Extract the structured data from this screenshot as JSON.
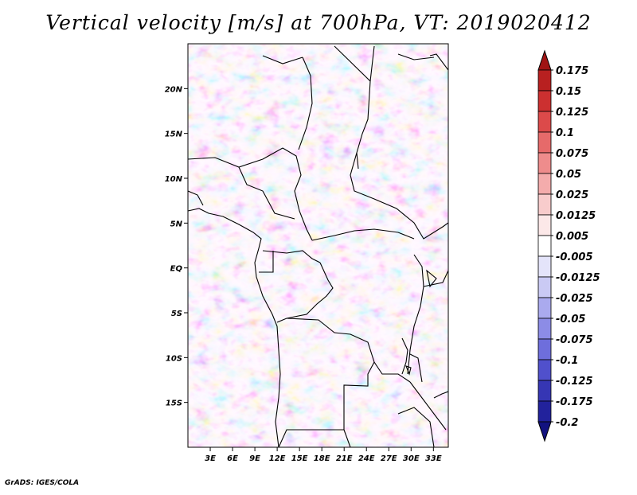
{
  "title": "Vertical velocity [m/s] at 700hPa, VT: 2019020412",
  "credit": "GrADS: IGES/COLA",
  "map": {
    "lon_range": [
      0,
      35
    ],
    "lat_range": [
      -20,
      25
    ],
    "lat_labels": [
      "20N",
      "15N",
      "10N",
      "5N",
      "EQ",
      "5S",
      "10S",
      "15S"
    ],
    "lat_values": [
      20,
      15,
      10,
      5,
      0,
      -5,
      -10,
      -15
    ],
    "lon_labels": [
      "3E",
      "6E",
      "9E",
      "12E",
      "15E",
      "18E",
      "21E",
      "24E",
      "27E",
      "30E",
      "33E"
    ],
    "lon_values": [
      3,
      6,
      9,
      12,
      15,
      18,
      21,
      24,
      27,
      30,
      33
    ]
  },
  "colorbar": {
    "labels": [
      "0.175",
      "0.15",
      "0.125",
      "0.1",
      "0.075",
      "0.05",
      "0.025",
      "0.0125",
      "0.005",
      "-0.005",
      "-0.0125",
      "-0.025",
      "-0.05",
      "-0.075",
      "-0.1",
      "-0.125",
      "-0.175",
      "-0.2"
    ],
    "colors": [
      "#a01414",
      "#b82020",
      "#cc3030",
      "#dc4a4a",
      "#e66a6a",
      "#ee8c8c",
      "#f4acac",
      "#f8cccc",
      "#fce8e8",
      "#ffffff",
      "#e4e4fa",
      "#cacaf4",
      "#aaaaee",
      "#8c8ce6",
      "#6e6edc",
      "#5050cc",
      "#3636b4",
      "#22229c",
      "#121280"
    ]
  }
}
